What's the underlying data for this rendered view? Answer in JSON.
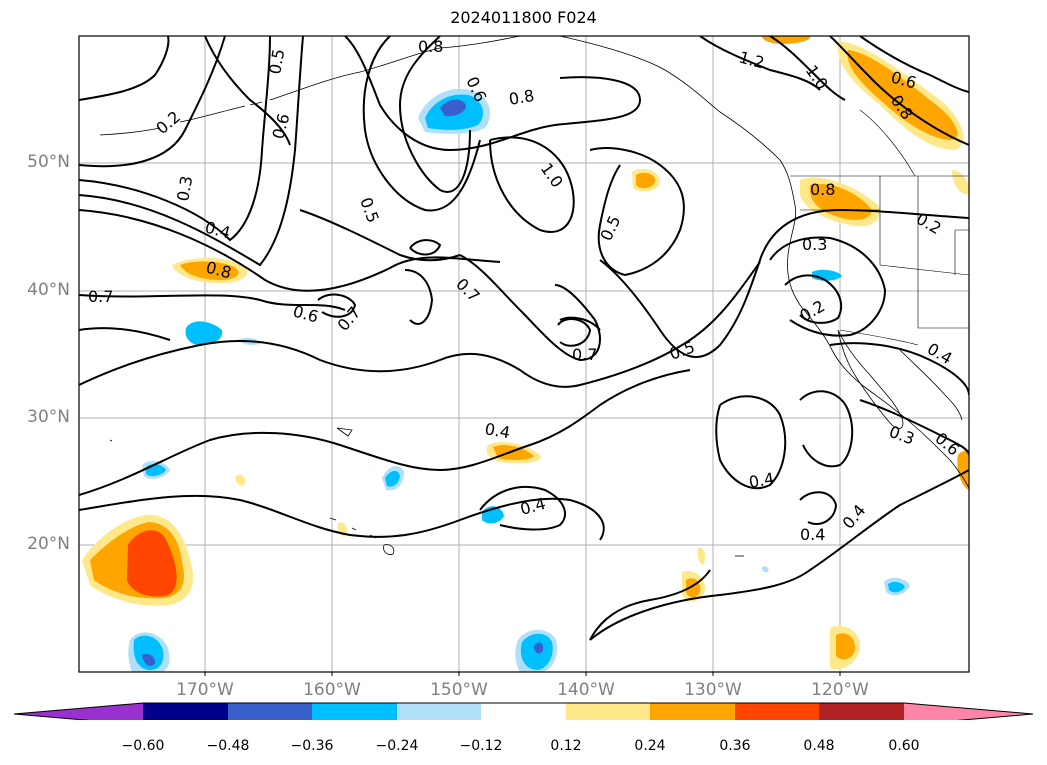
{
  "title": "2024011800 F024",
  "lat_labels": [
    "50°N",
    "40°N",
    "30°N",
    "20°N"
  ],
  "lon_labels": [
    "170°W",
    "160°W",
    "150°W",
    "140°W",
    "130°W",
    "120°W"
  ],
  "contour_labels": [
    "0.2",
    "0.3",
    "0.4",
    "0.8",
    "0.7",
    "0.6",
    "0.7",
    "0.5",
    "0.6",
    "0.8",
    "0.5",
    "0.6",
    "0.8",
    "1.0",
    "0.7",
    "0.5",
    "0.7",
    "0.5",
    "0.4",
    "0.4",
    "0.4",
    "1.2",
    "1.0",
    "0.6",
    "0.8",
    "0.8",
    "0.3",
    "0.2",
    "0.4",
    "0.3",
    "0.4",
    "0.4",
    "0.2",
    "0.6"
  ],
  "colorbar": {
    "tick_labels": [
      "−0.60",
      "−0.48",
      "−0.36",
      "−0.24",
      "−0.12",
      "0.12",
      "0.24",
      "0.36",
      "0.48",
      "0.60"
    ],
    "colors": [
      "#9b30d0",
      "#00008b",
      "#3a5fcd",
      "#00bfff",
      "#b0e0f8",
      "#ffffff",
      "#ffe88a",
      "#ffa500",
      "#ff4500",
      "#b22222",
      "#ff85a8",
      "#ff85a8"
    ]
  }
}
